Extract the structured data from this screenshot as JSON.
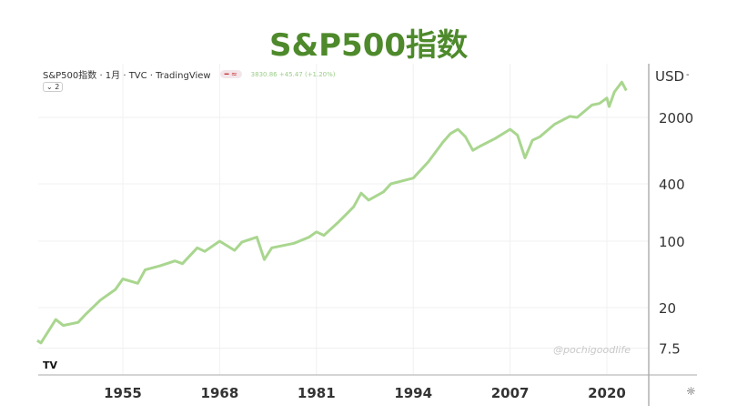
{
  "title": "S&P500指数",
  "legend": {
    "label": "S&P500指数 · 1月 · TVC · TradingView",
    "quote": "3830.86 +45.47 (+1.20%)",
    "collapse": "⌄ 2"
  },
  "watermark": "@pochigoodlife",
  "logo": "TV",
  "gear_icon": "☼",
  "colors": {
    "line": "#a9d68f",
    "title": "#4e8a2c"
  },
  "chart_data": {
    "type": "line",
    "scale": "log",
    "ylabel": "USD",
    "yticks": [
      2000,
      400,
      100,
      20,
      7.5
    ],
    "xticks": [
      1955,
      1968,
      1981,
      1994,
      2007,
      2020
    ],
    "series": [
      {
        "name": "S&P500",
        "x": [
          1943.5,
          1944,
          1946,
          1947,
          1949,
          1950,
          1952,
          1954,
          1955,
          1957,
          1958,
          1960,
          1962,
          1963,
          1965,
          1966,
          1968,
          1970,
          1971,
          1973,
          1974,
          1975,
          1978,
          1980,
          1981,
          1982,
          1984,
          1986,
          1987,
          1988,
          1990,
          1991,
          1994,
          1996,
          1998,
          1999,
          2000,
          2001,
          2002,
          2003,
          2005,
          2007,
          2008,
          2009,
          2010,
          2011,
          2013,
          2015,
          2016,
          2018,
          2019,
          2020,
          2020.3,
          2021,
          2022,
          2022.6
        ],
        "values": [
          9,
          8.5,
          15,
          13,
          14,
          17,
          24,
          31,
          40,
          36,
          50,
          55,
          62,
          58,
          85,
          78,
          100,
          80,
          98,
          110,
          64,
          85,
          95,
          110,
          125,
          115,
          160,
          230,
          320,
          270,
          330,
          400,
          460,
          680,
          1100,
          1350,
          1500,
          1250,
          900,
          1000,
          1200,
          1500,
          1300,
          750,
          1150,
          1250,
          1700,
          2050,
          2000,
          2700,
          2800,
          3200,
          2600,
          3700,
          4700,
          3830
        ]
      }
    ]
  }
}
